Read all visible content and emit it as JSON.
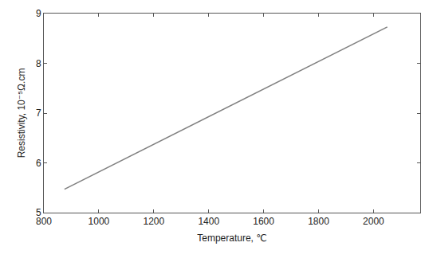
{
  "chart_data": {
    "type": "line",
    "x_label": "Temperature, ℃",
    "y_label": "Resistivity, 10⁻⁵Ω.cm",
    "x": [
      875,
      2050
    ],
    "values": [
      5.47,
      8.73
    ],
    "color": "#808080",
    "xlim": [
      800,
      2170
    ],
    "xticks": [
      800,
      1000,
      1200,
      1400,
      1600,
      1800,
      2000
    ],
    "ylim": [
      5,
      9
    ],
    "yticks": [
      5,
      6,
      7,
      8,
      9
    ],
    "grid": false
  }
}
